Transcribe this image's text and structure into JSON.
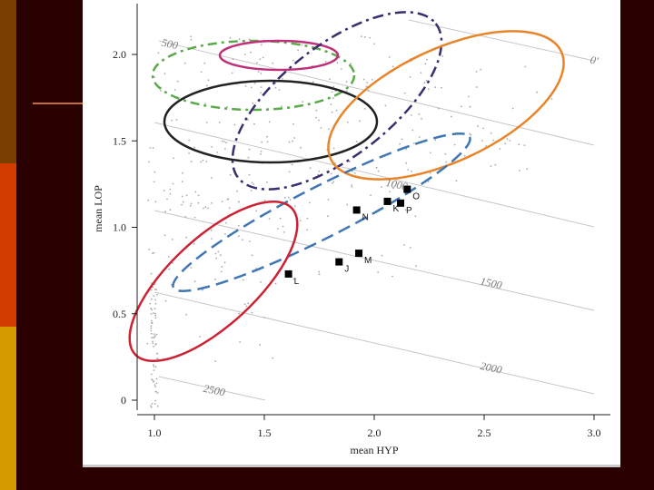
{
  "chart_data": {
    "type": "scatter",
    "xlabel": "mean HYP",
    "ylabel": "mean LOP",
    "xlim": [
      0.95,
      3.05
    ],
    "ylim": [
      -0.05,
      2.25
    ],
    "x_ticks": [
      "1.0",
      "1.5",
      "2.0",
      "2.5",
      "3.0"
    ],
    "y_ticks": [
      "0",
      "0.5",
      "1.0",
      "1.5",
      "2.0"
    ],
    "contours": [
      {
        "label": "0'",
        "x": 2.98,
        "y": 1.95
      },
      {
        "label": "500",
        "x": 1.03,
        "y": 2.05
      },
      {
        "label": "1000",
        "x": 2.05,
        "y": 1.24
      },
      {
        "label": "1500",
        "x": 2.48,
        "y": 0.67
      },
      {
        "label": "2000",
        "x": 2.48,
        "y": 0.18
      },
      {
        "label": "2500",
        "x": 1.22,
        "y": 0.05
      }
    ],
    "points": [
      {
        "label": "O",
        "x": 2.15,
        "y": 1.22
      },
      {
        "label": "K",
        "x": 2.06,
        "y": 1.15
      },
      {
        "label": "P",
        "x": 2.12,
        "y": 1.14
      },
      {
        "label": "N",
        "x": 1.92,
        "y": 1.1
      },
      {
        "label": "M",
        "x": 1.93,
        "y": 0.85
      },
      {
        "label": "J",
        "x": 1.84,
        "y": 0.8
      },
      {
        "label": "L",
        "x": 1.61,
        "y": 0.73
      }
    ],
    "ellipses_colors": {
      "magenta": "#c0307a",
      "green": "#5aaa4a",
      "black": "#222222",
      "purple": "#3a2e70",
      "orange": "#e8852a",
      "blue": "#3f76b4",
      "red": "#cc2233"
    }
  }
}
